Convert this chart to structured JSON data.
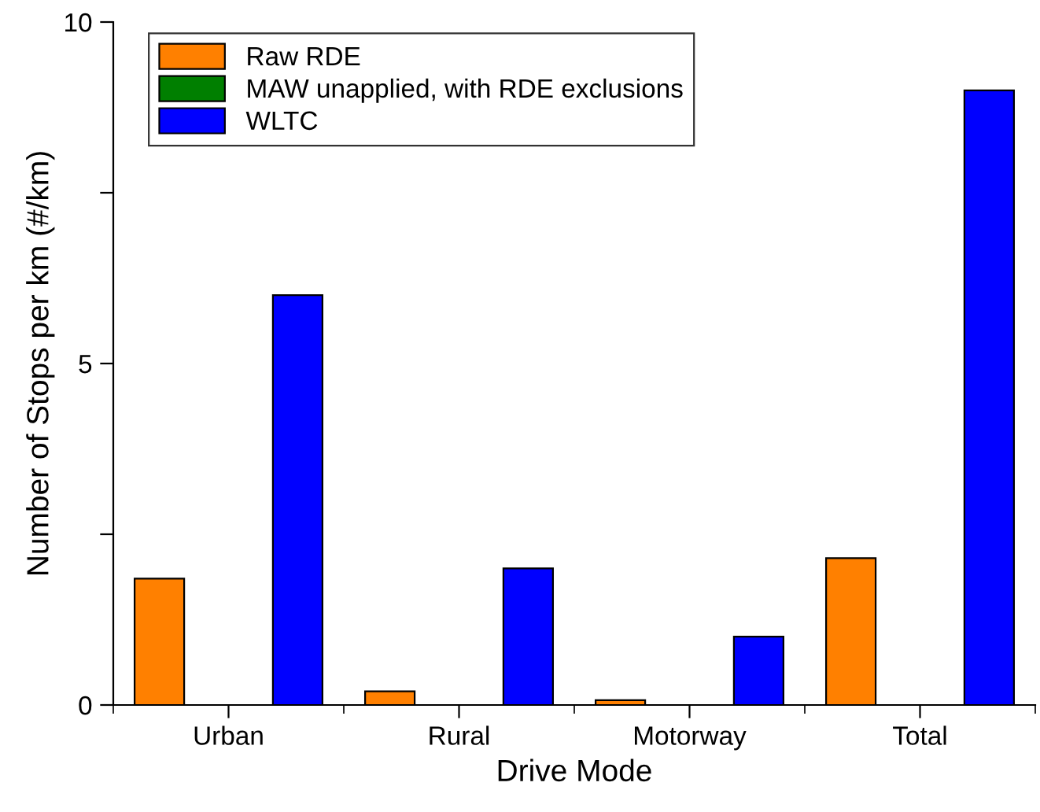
{
  "chart_data": {
    "type": "bar",
    "xlabel": "Drive Mode",
    "ylabel": "Number of Stops per km (#/km)",
    "categories": [
      "Urban",
      "Rural",
      "Motorway",
      "Total"
    ],
    "series": [
      {
        "name": "Raw RDE",
        "color": "#ff8000",
        "values": [
          1.85,
          0.2,
          0.07,
          2.15
        ]
      },
      {
        "name": "MAW unapplied, with RDE exclusions",
        "color": "#007f00",
        "values": [
          null,
          null,
          null,
          null
        ]
      },
      {
        "name": "WLTC",
        "color": "#0000ff",
        "values": [
          6,
          2,
          1,
          9
        ]
      }
    ],
    "ylim": [
      0,
      10
    ],
    "yticks": [
      0,
      {
        "value": 2.5,
        "label": null
      },
      5,
      {
        "value": 7.5,
        "label": null
      },
      10
    ],
    "grid": false,
    "legend": "top left"
  }
}
